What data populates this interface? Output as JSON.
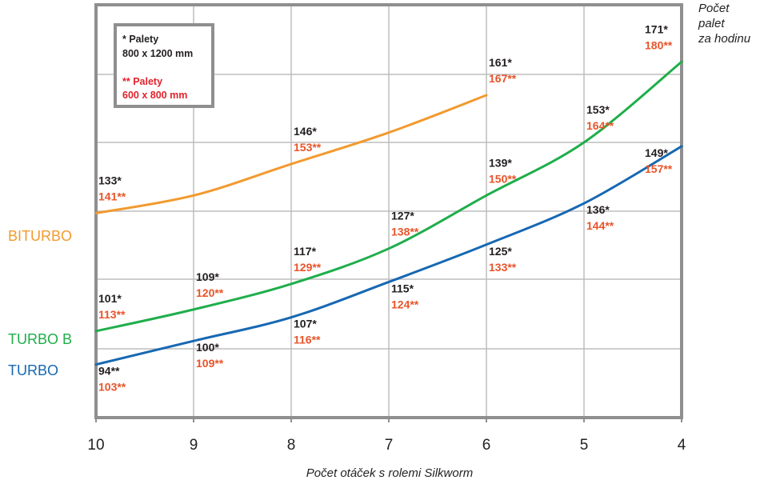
{
  "colors": {
    "frame": "#8f8f8f",
    "grid": "#bdbdbd",
    "bi_turbo": "#f29a2e",
    "turbo_b": "#1fae4b",
    "turbo": "#1768b2",
    "label_single": "#231f20",
    "label_double": "#e8542a",
    "legend_double": "#e3222b"
  },
  "legend": {
    "line1": "* Palety",
    "line2": "800 x 1200 mm",
    "line3": "** Palety",
    "line4": "600 x 800 mm"
  },
  "chart_data": {
    "type": "line",
    "title": "",
    "xlabel": "Počet otáček s rolemi Silkworm",
    "ylabel": "Počet palet za hodinu",
    "ylabel_lines": [
      "Počet",
      "palet",
      "za hodinu"
    ],
    "x_ticks": [
      "10",
      "9",
      "8",
      "7",
      "6",
      "5",
      "4"
    ],
    "x_reversed": true,
    "xlim": [
      10,
      4
    ],
    "ylim": [
      85,
      190
    ],
    "grid": true,
    "legend": "top-left",
    "series": [
      {
        "name": "BITURBO",
        "color": "#f29a2e",
        "x": [
          10,
          9,
          8,
          7,
          6
        ],
        "y": [
          137,
          141.5,
          149.5,
          157.5,
          167
        ],
        "labels": [
          {
            "x": 10,
            "a": "133*",
            "b": "141**"
          },
          {
            "x": 8,
            "a": "146*",
            "b": "153**"
          },
          {
            "x": 6,
            "a": "161*",
            "b": "167**"
          }
        ]
      },
      {
        "name": "TURBO B",
        "color": "#1fae4b",
        "x": [
          10,
          9,
          8,
          7,
          6,
          5,
          4
        ],
        "y": [
          107,
          112.5,
          119,
          128,
          141.5,
          155,
          175.5
        ],
        "labels": [
          {
            "x": 10,
            "a": "101*",
            "b": "113**"
          },
          {
            "x": 9,
            "a": "109*",
            "b": "120**"
          },
          {
            "x": 8,
            "a": "117*",
            "b": "129**"
          },
          {
            "x": 7,
            "a": "127*",
            "b": "138**"
          },
          {
            "x": 6,
            "a": "139*",
            "b": "150**"
          },
          {
            "x": 5,
            "a": "153*",
            "b": "164**"
          },
          {
            "x": 4,
            "a": "171*",
            "b": "180**"
          }
        ]
      },
      {
        "name": "TURBO",
        "color": "#1768b2",
        "x": [
          10,
          9,
          8,
          7,
          6,
          5,
          4
        ],
        "y": [
          98.5,
          104.5,
          110.5,
          119.5,
          129,
          139.5,
          154
        ],
        "labels": [
          {
            "x": 10,
            "a": "94**",
            "b": "103**"
          },
          {
            "x": 9,
            "a": "100*",
            "b": "109**"
          },
          {
            "x": 8,
            "a": "107*",
            "b": "116**"
          },
          {
            "x": 7,
            "a": "115*",
            "b": "124**"
          },
          {
            "x": 6,
            "a": "125*",
            "b": "133**"
          },
          {
            "x": 5,
            "a": "136*",
            "b": "144**"
          },
          {
            "x": 4,
            "a": "149*",
            "b": "157**"
          }
        ]
      }
    ]
  }
}
